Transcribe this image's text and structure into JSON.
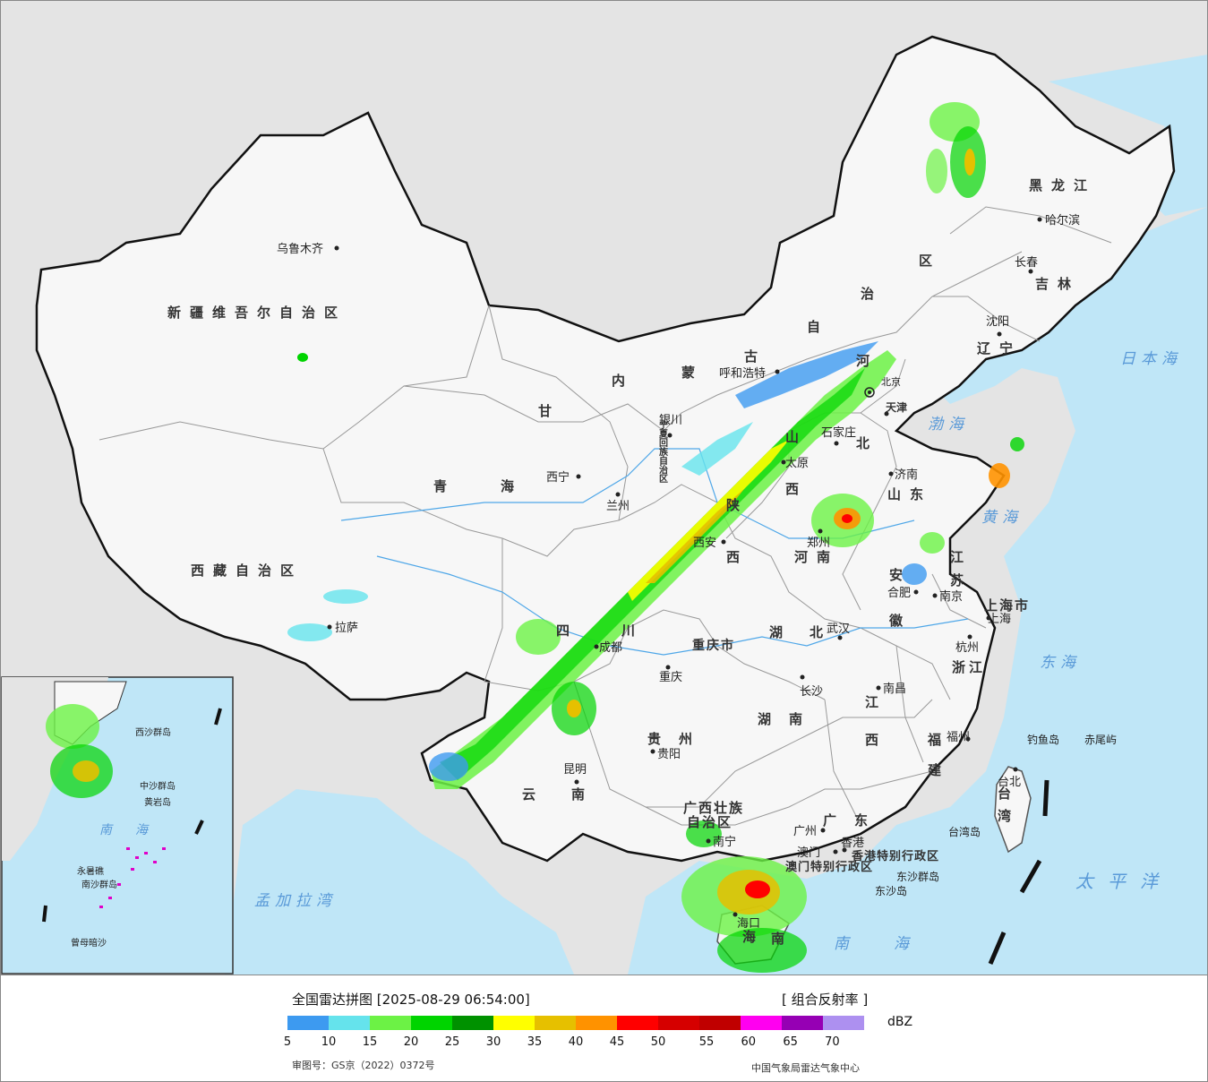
{
  "legend": {
    "title": "全国雷达拼图 [2025-08-29 06:54:00]",
    "product": "[ 组合反射率 ]",
    "unit": "dBZ",
    "ticks": [
      "5",
      "10",
      "15",
      "20",
      "25",
      "30",
      "35",
      "40",
      "45",
      "50",
      "55",
      "60",
      "65",
      "70"
    ],
    "colors": [
      "#3d9af0",
      "#65e3ec",
      "#6cf245",
      "#00d400",
      "#009100",
      "#ffff00",
      "#e6c000",
      "#ff9200",
      "#ff0000",
      "#d60000",
      "#c00000",
      "#ff00f0",
      "#9600b4",
      "#ad90f0"
    ],
    "approval": "审图号：GS京（2022）0372号",
    "source": "中国气象局雷达气象中心"
  },
  "provinces": {
    "xinjiang": "新疆维吾尔自治区",
    "xizang": "西藏自治区",
    "qinghai": "青海",
    "gansu": "甘",
    "neimenggu_1": "内",
    "neimenggu_2": "蒙",
    "neimenggu_3": "古",
    "neimenggu_4": "自",
    "neimenggu_5": "治",
    "neimenggu_6": "区",
    "heilongjiang": "黑龙江",
    "jilin": "吉林",
    "liaoning": "辽宁",
    "hebei_1": "河",
    "hebei_2": "北",
    "shanxi_1": "山",
    "shanxi_2": "西",
    "shandong": "山东",
    "henan": "河南",
    "shaanxi_1": "陕",
    "shaanxi_2": "西",
    "ningxia": "宁夏回族自治区",
    "jiangsu_1": "江",
    "jiangsu_2": "苏",
    "anhui_1": "安",
    "anhui_2": "徽",
    "hubei": "湖北",
    "sichuan_1": "四",
    "sichuan_2": "川",
    "chongqing": "重庆市",
    "guizhou": "贵州",
    "yunnan": "云南",
    "hunan": "湖南",
    "jiangxi_1": "江",
    "jiangxi_2": "西",
    "zhejiang": "浙江",
    "fujian_1": "福",
    "fujian_2": "建",
    "guangxi_1": "广西壮族",
    "guangxi_2": "自治区",
    "guangdong": "广东",
    "hainan_1": "海",
    "hainan_2": "南",
    "taiwan_1": "台",
    "taiwan_2": "湾",
    "shanghai": "上海市",
    "tianjin": "天津",
    "hongkong": "香港特别行政区",
    "macau": "澳门特别行政区"
  },
  "cities": {
    "urumqi": "乌鲁木齐",
    "lhasa": "拉萨",
    "xining": "西宁",
    "lanzhou": "兰州",
    "yinchuan": "银川",
    "hohhot": "呼和浩特",
    "beijing": "北京",
    "tianjin": "天津",
    "shijiazhuang": "石家庄",
    "taiyuan": "太原",
    "jinan": "济南",
    "zhengzhou": "郑州",
    "xian": "西安",
    "hefei": "合肥",
    "nanjing": "南京",
    "shanghai": "上海",
    "hangzhou": "杭州",
    "wuhan": "武汉",
    "chengdu": "成都",
    "chongqing": "重庆",
    "changsha": "长沙",
    "nanchang": "南昌",
    "fuzhou": "福州",
    "guiyang": "贵阳",
    "kunming": "昆明",
    "nanning": "南宁",
    "guangzhou": "广州",
    "macau": "澳门",
    "hongkong": "香港",
    "haikou": "海口",
    "taipei": "台北",
    "harbin": "哈尔滨",
    "changchun": "长春",
    "shenyang": "沈阳"
  },
  "seas": {
    "sea_of_japan": "日本海",
    "bohai": "渤海",
    "yellow_sea": "黄海",
    "east_china_sea": "东海",
    "pacific": "太平洋",
    "bay_of_bengal": "孟加拉湾",
    "south_china_sea": "南海"
  },
  "islands": {
    "diaoyu": "钓鱼岛",
    "chiwei": "赤尾屿",
    "taiwan_island": "台湾岛",
    "dongsha_islands": "东沙群岛",
    "dongsha_island": "东沙岛"
  },
  "inset": {
    "label_1": "南",
    "label_2": "海",
    "zhongsha": "中沙群岛",
    "xisha": "西沙群岛",
    "nansha": "南沙群岛",
    "huangyan": "黄岩岛",
    "zengmu": "曾母暗沙",
    "yongshu": "永暑礁"
  }
}
